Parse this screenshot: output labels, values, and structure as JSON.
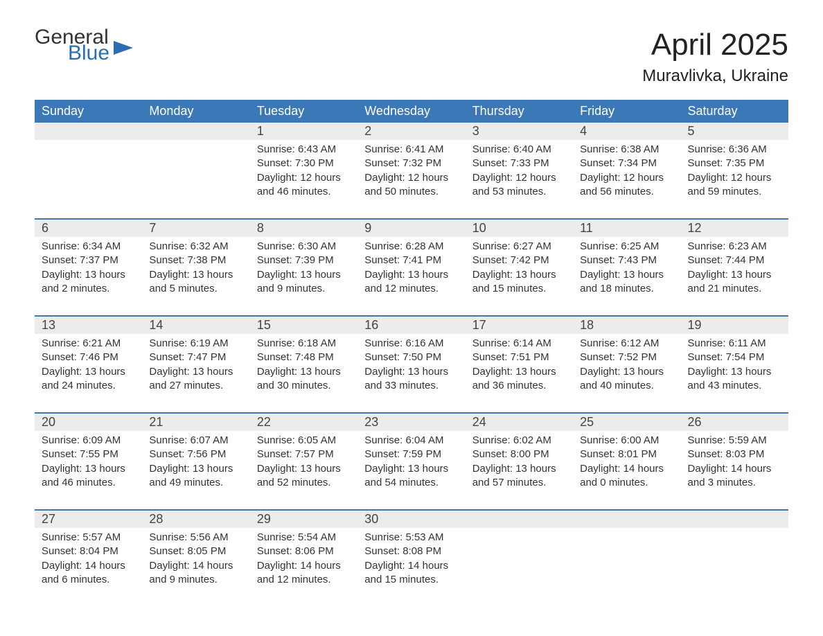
{
  "logo": {
    "line1": "General",
    "line2": "Blue"
  },
  "title": "April 2025",
  "location": "Muravlivka, Ukraine",
  "colors": {
    "header_bg": "#3b78b8",
    "header_text": "#ffffff",
    "daynum_bg": "#ececec",
    "body_text": "#333333",
    "rule": "#3b78b8",
    "logo_blue": "#2a6db3"
  },
  "weekdays": [
    "Sunday",
    "Monday",
    "Tuesday",
    "Wednesday",
    "Thursday",
    "Friday",
    "Saturday"
  ],
  "weeks": [
    [
      null,
      null,
      {
        "n": "1",
        "sr": "6:43 AM",
        "ss": "7:30 PM",
        "dl": "12 hours and 46 minutes."
      },
      {
        "n": "2",
        "sr": "6:41 AM",
        "ss": "7:32 PM",
        "dl": "12 hours and 50 minutes."
      },
      {
        "n": "3",
        "sr": "6:40 AM",
        "ss": "7:33 PM",
        "dl": "12 hours and 53 minutes."
      },
      {
        "n": "4",
        "sr": "6:38 AM",
        "ss": "7:34 PM",
        "dl": "12 hours and 56 minutes."
      },
      {
        "n": "5",
        "sr": "6:36 AM",
        "ss": "7:35 PM",
        "dl": "12 hours and 59 minutes."
      }
    ],
    [
      {
        "n": "6",
        "sr": "6:34 AM",
        "ss": "7:37 PM",
        "dl": "13 hours and 2 minutes."
      },
      {
        "n": "7",
        "sr": "6:32 AM",
        "ss": "7:38 PM",
        "dl": "13 hours and 5 minutes."
      },
      {
        "n": "8",
        "sr": "6:30 AM",
        "ss": "7:39 PM",
        "dl": "13 hours and 9 minutes."
      },
      {
        "n": "9",
        "sr": "6:28 AM",
        "ss": "7:41 PM",
        "dl": "13 hours and 12 minutes."
      },
      {
        "n": "10",
        "sr": "6:27 AM",
        "ss": "7:42 PM",
        "dl": "13 hours and 15 minutes."
      },
      {
        "n": "11",
        "sr": "6:25 AM",
        "ss": "7:43 PM",
        "dl": "13 hours and 18 minutes."
      },
      {
        "n": "12",
        "sr": "6:23 AM",
        "ss": "7:44 PM",
        "dl": "13 hours and 21 minutes."
      }
    ],
    [
      {
        "n": "13",
        "sr": "6:21 AM",
        "ss": "7:46 PM",
        "dl": "13 hours and 24 minutes."
      },
      {
        "n": "14",
        "sr": "6:19 AM",
        "ss": "7:47 PM",
        "dl": "13 hours and 27 minutes."
      },
      {
        "n": "15",
        "sr": "6:18 AM",
        "ss": "7:48 PM",
        "dl": "13 hours and 30 minutes."
      },
      {
        "n": "16",
        "sr": "6:16 AM",
        "ss": "7:50 PM",
        "dl": "13 hours and 33 minutes."
      },
      {
        "n": "17",
        "sr": "6:14 AM",
        "ss": "7:51 PM",
        "dl": "13 hours and 36 minutes."
      },
      {
        "n": "18",
        "sr": "6:12 AM",
        "ss": "7:52 PM",
        "dl": "13 hours and 40 minutes."
      },
      {
        "n": "19",
        "sr": "6:11 AM",
        "ss": "7:54 PM",
        "dl": "13 hours and 43 minutes."
      }
    ],
    [
      {
        "n": "20",
        "sr": "6:09 AM",
        "ss": "7:55 PM",
        "dl": "13 hours and 46 minutes."
      },
      {
        "n": "21",
        "sr": "6:07 AM",
        "ss": "7:56 PM",
        "dl": "13 hours and 49 minutes."
      },
      {
        "n": "22",
        "sr": "6:05 AM",
        "ss": "7:57 PM",
        "dl": "13 hours and 52 minutes."
      },
      {
        "n": "23",
        "sr": "6:04 AM",
        "ss": "7:59 PM",
        "dl": "13 hours and 54 minutes."
      },
      {
        "n": "24",
        "sr": "6:02 AM",
        "ss": "8:00 PM",
        "dl": "13 hours and 57 minutes."
      },
      {
        "n": "25",
        "sr": "6:00 AM",
        "ss": "8:01 PM",
        "dl": "14 hours and 0 minutes."
      },
      {
        "n": "26",
        "sr": "5:59 AM",
        "ss": "8:03 PM",
        "dl": "14 hours and 3 minutes."
      }
    ],
    [
      {
        "n": "27",
        "sr": "5:57 AM",
        "ss": "8:04 PM",
        "dl": "14 hours and 6 minutes."
      },
      {
        "n": "28",
        "sr": "5:56 AM",
        "ss": "8:05 PM",
        "dl": "14 hours and 9 minutes."
      },
      {
        "n": "29",
        "sr": "5:54 AM",
        "ss": "8:06 PM",
        "dl": "14 hours and 12 minutes."
      },
      {
        "n": "30",
        "sr": "5:53 AM",
        "ss": "8:08 PM",
        "dl": "14 hours and 15 minutes."
      },
      null,
      null,
      null
    ]
  ],
  "labels": {
    "sunrise": "Sunrise: ",
    "sunset": "Sunset: ",
    "daylight": "Daylight: "
  }
}
